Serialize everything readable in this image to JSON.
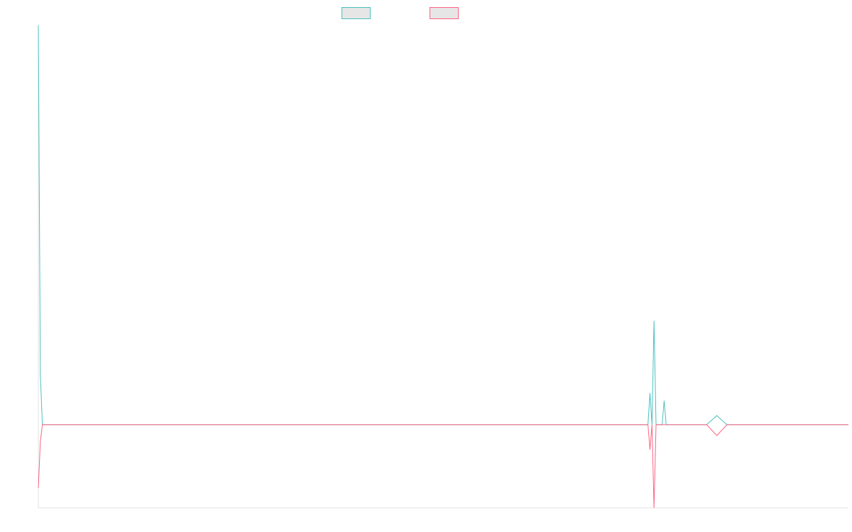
{
  "chart_data": {
    "type": "line",
    "title": "",
    "xlabel": "",
    "ylabel": "",
    "legend_position": "top-center",
    "grid": false,
    "xlim": [
      0,
      400
    ],
    "ylim": [
      -100,
      480
    ],
    "x": [
      0,
      1,
      2,
      3,
      4,
      5,
      10,
      20,
      50,
      100,
      150,
      200,
      250,
      280,
      300,
      301,
      302,
      303,
      304,
      305,
      306,
      307,
      308,
      309,
      310,
      315,
      320,
      325,
      330,
      335,
      340,
      350,
      360,
      370,
      380,
      390,
      400
    ],
    "series": [
      {
        "color": "#4bc0c0",
        "legend_fill": "#e6e6e6",
        "values": [
          480,
          60,
          0,
          0,
          0,
          0,
          0,
          0,
          0,
          0,
          0,
          0,
          0,
          0,
          0,
          0,
          38,
          0,
          125,
          0,
          0,
          0,
          0,
          29,
          0,
          0,
          0,
          0,
          0,
          11,
          0,
          0,
          0,
          0,
          0,
          0,
          0
        ]
      },
      {
        "color": "#ff6384",
        "legend_fill": "#e6e6e6",
        "values": [
          -76,
          -20,
          0,
          0,
          0,
          0,
          0,
          0,
          0,
          0,
          0,
          0,
          0,
          0,
          0,
          0,
          -30,
          0,
          -100,
          0,
          0,
          0,
          0,
          0,
          0,
          0,
          0,
          0,
          0,
          -13,
          0,
          0,
          0,
          0,
          0,
          0,
          0
        ]
      }
    ]
  }
}
